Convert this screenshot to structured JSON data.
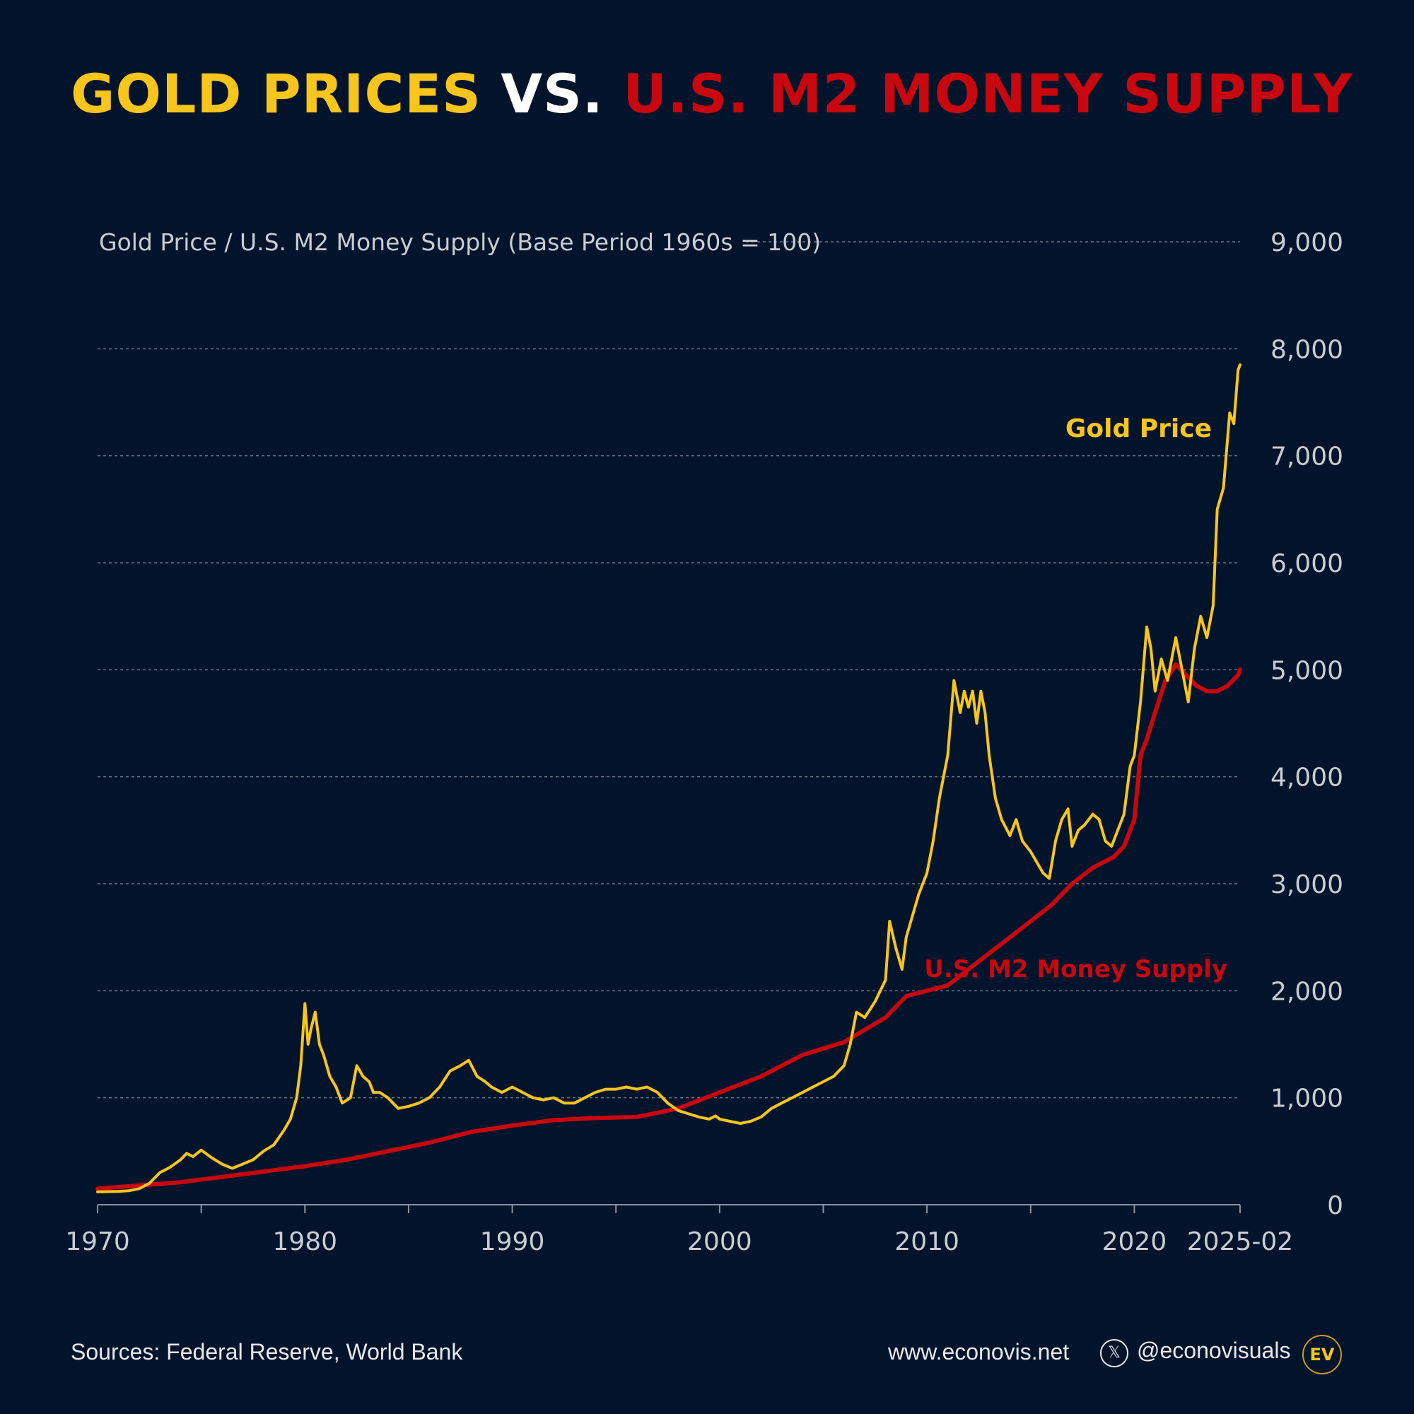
{
  "title": {
    "part1": "GOLD PRICES",
    "part2": "VS.",
    "part3": "U.S. M2 MONEY SUPPLY"
  },
  "colors": {
    "background": "#02142b",
    "gold": "#f7c51c",
    "m2": "#c8070e",
    "text": "#e8e8ec",
    "axis_text": "#c9ccd3",
    "grid": "#6b7386"
  },
  "footer": {
    "sources": "Sources: Federal Reserve, World Bank",
    "website": "www.econovis.net",
    "x_icon": "x-logo-icon",
    "x_glyph": "𝕏",
    "handle": "@econovisuals",
    "logo_text": "EV"
  },
  "chart_data": {
    "type": "line",
    "subtitle": "Gold Price / U.S. M2 Money Supply (Base Period 1960s = 100)",
    "xlim": [
      1970,
      2025.1
    ],
    "ylim": [
      0,
      9000
    ],
    "grid": true,
    "y_ticks": [
      0,
      1000,
      2000,
      3000,
      4000,
      5000,
      6000,
      7000,
      8000,
      9000
    ],
    "y_tick_labels": [
      "0",
      "1,000",
      "2,000",
      "3,000",
      "4,000",
      "5,000",
      "6,000",
      "7,000",
      "8,000",
      "9,000"
    ],
    "x_minor_ticks": [
      1970,
      1975,
      1980,
      1985,
      1990,
      1995,
      2000,
      2005,
      2010,
      2015,
      2020,
      2025.1
    ],
    "x_ticks": [
      1970,
      1980,
      1990,
      2000,
      2010,
      2020,
      2025.1
    ],
    "x_tick_labels": [
      "1970",
      "1980",
      "1990",
      "2000",
      "2010",
      "2020",
      "2025-02"
    ],
    "series": [
      {
        "name": "Gold Price",
        "color": "#f7c51c",
        "x": [
          1970,
          1971,
          1971.5,
          1972,
          1972.5,
          1973,
          1973.5,
          1974,
          1974.3,
          1974.6,
          1975,
          1975.5,
          1976,
          1976.5,
          1977,
          1977.5,
          1978,
          1978.5,
          1979,
          1979.3,
          1979.6,
          1979.8,
          1980,
          1980.15,
          1980.3,
          1980.5,
          1980.7,
          1980.9,
          1981.2,
          1981.5,
          1981.8,
          1982.2,
          1982.5,
          1982.8,
          1983.1,
          1983.3,
          1983.6,
          1984,
          1984.5,
          1985,
          1985.5,
          1986,
          1986.5,
          1987,
          1987.5,
          1987.9,
          1988.3,
          1988.7,
          1989,
          1989.5,
          1990,
          1990.5,
          1991,
          1991.5,
          1992,
          1992.5,
          1993,
          1993.5,
          1994,
          1994.5,
          1995,
          1995.5,
          1996,
          1996.5,
          1997,
          1997.5,
          1998,
          1998.5,
          1999,
          1999.5,
          1999.8,
          2000,
          2000.5,
          2001,
          2001.5,
          2002,
          2002.5,
          2003,
          2003.5,
          2004,
          2004.5,
          2005,
          2005.5,
          2006,
          2006.3,
          2006.6,
          2007,
          2007.5,
          2008,
          2008.2,
          2008.5,
          2008.8,
          2009,
          2009.3,
          2009.6,
          2010,
          2010.3,
          2010.6,
          2011,
          2011.3,
          2011.6,
          2011.8,
          2012,
          2012.2,
          2012.4,
          2012.6,
          2012.8,
          2013,
          2013.3,
          2013.6,
          2014,
          2014.3,
          2014.6,
          2015,
          2015.3,
          2015.6,
          2015.9,
          2016.2,
          2016.5,
          2016.8,
          2017,
          2017.3,
          2017.6,
          2018,
          2018.3,
          2018.6,
          2018.9,
          2019.2,
          2019.5,
          2019.8,
          2020,
          2020.3,
          2020.6,
          2020.8,
          2021,
          2021.3,
          2021.6,
          2022,
          2022.3,
          2022.6,
          2022.9,
          2023.2,
          2023.5,
          2023.8,
          2024,
          2024.3,
          2024.6,
          2024.8,
          2025,
          2025.1
        ],
        "values": [
          120,
          125,
          130,
          150,
          200,
          300,
          350,
          420,
          480,
          450,
          510,
          440,
          380,
          340,
          380,
          420,
          500,
          560,
          700,
          800,
          1000,
          1300,
          1880,
          1500,
          1650,
          1800,
          1500,
          1400,
          1200,
          1100,
          950,
          1000,
          1300,
          1200,
          1150,
          1050,
          1050,
          1000,
          900,
          920,
          950,
          1000,
          1100,
          1250,
          1300,
          1350,
          1200,
          1150,
          1100,
          1050,
          1100,
          1050,
          1000,
          980,
          1000,
          950,
          950,
          1000,
          1050,
          1080,
          1080,
          1100,
          1080,
          1100,
          1050,
          950,
          880,
          850,
          820,
          800,
          830,
          800,
          780,
          760,
          780,
          820,
          900,
          950,
          1000,
          1050,
          1100,
          1150,
          1200,
          1300,
          1500,
          1800,
          1750,
          1900,
          2100,
          2650,
          2400,
          2200,
          2500,
          2700,
          2900,
          3100,
          3400,
          3800,
          4200,
          4900,
          4600,
          4800,
          4650,
          4800,
          4500,
          4800,
          4600,
          4200,
          3800,
          3600,
          3450,
          3600,
          3400,
          3300,
          3200,
          3100,
          3050,
          3400,
          3600,
          3700,
          3350,
          3500,
          3550,
          3650,
          3600,
          3400,
          3350,
          3500,
          3650,
          4100,
          4200,
          4700,
          5400,
          5200,
          4800,
          5100,
          4900,
          5300,
          5000,
          4700,
          5200,
          5500,
          5300,
          5600,
          6500,
          6700,
          7400,
          7300,
          7800,
          7850
        ]
      },
      {
        "name": "U.S. M2 Money Supply",
        "color": "#c8070e",
        "x": [
          1970,
          1972,
          1974,
          1976,
          1978,
          1980,
          1982,
          1984,
          1986,
          1988,
          1990,
          1992,
          1994,
          1996,
          1998,
          2000,
          2002,
          2004,
          2006,
          2008,
          2009,
          2010,
          2011,
          2012,
          2013,
          2014,
          2015,
          2016,
          2017,
          2018,
          2019,
          2019.5,
          2020,
          2020.3,
          2020.6,
          2021,
          2021.5,
          2022,
          2022.5,
          2023,
          2023.5,
          2024,
          2024.5,
          2025,
          2025.1
        ],
        "values": [
          150,
          180,
          210,
          260,
          310,
          360,
          420,
          500,
          580,
          680,
          740,
          790,
          810,
          820,
          900,
          1050,
          1200,
          1400,
          1520,
          1750,
          1950,
          2000,
          2050,
          2200,
          2350,
          2500,
          2650,
          2800,
          3000,
          3150,
          3250,
          3350,
          3600,
          4200,
          4350,
          4600,
          4900,
          5050,
          4950,
          4850,
          4800,
          4800,
          4850,
          4950,
          5000
        ]
      }
    ],
    "annotations": [
      {
        "text": "Gold Price",
        "series": "Gold Price"
      },
      {
        "text": "U.S. M2 Money Supply",
        "series": "U.S. M2 Money Supply"
      }
    ]
  }
}
